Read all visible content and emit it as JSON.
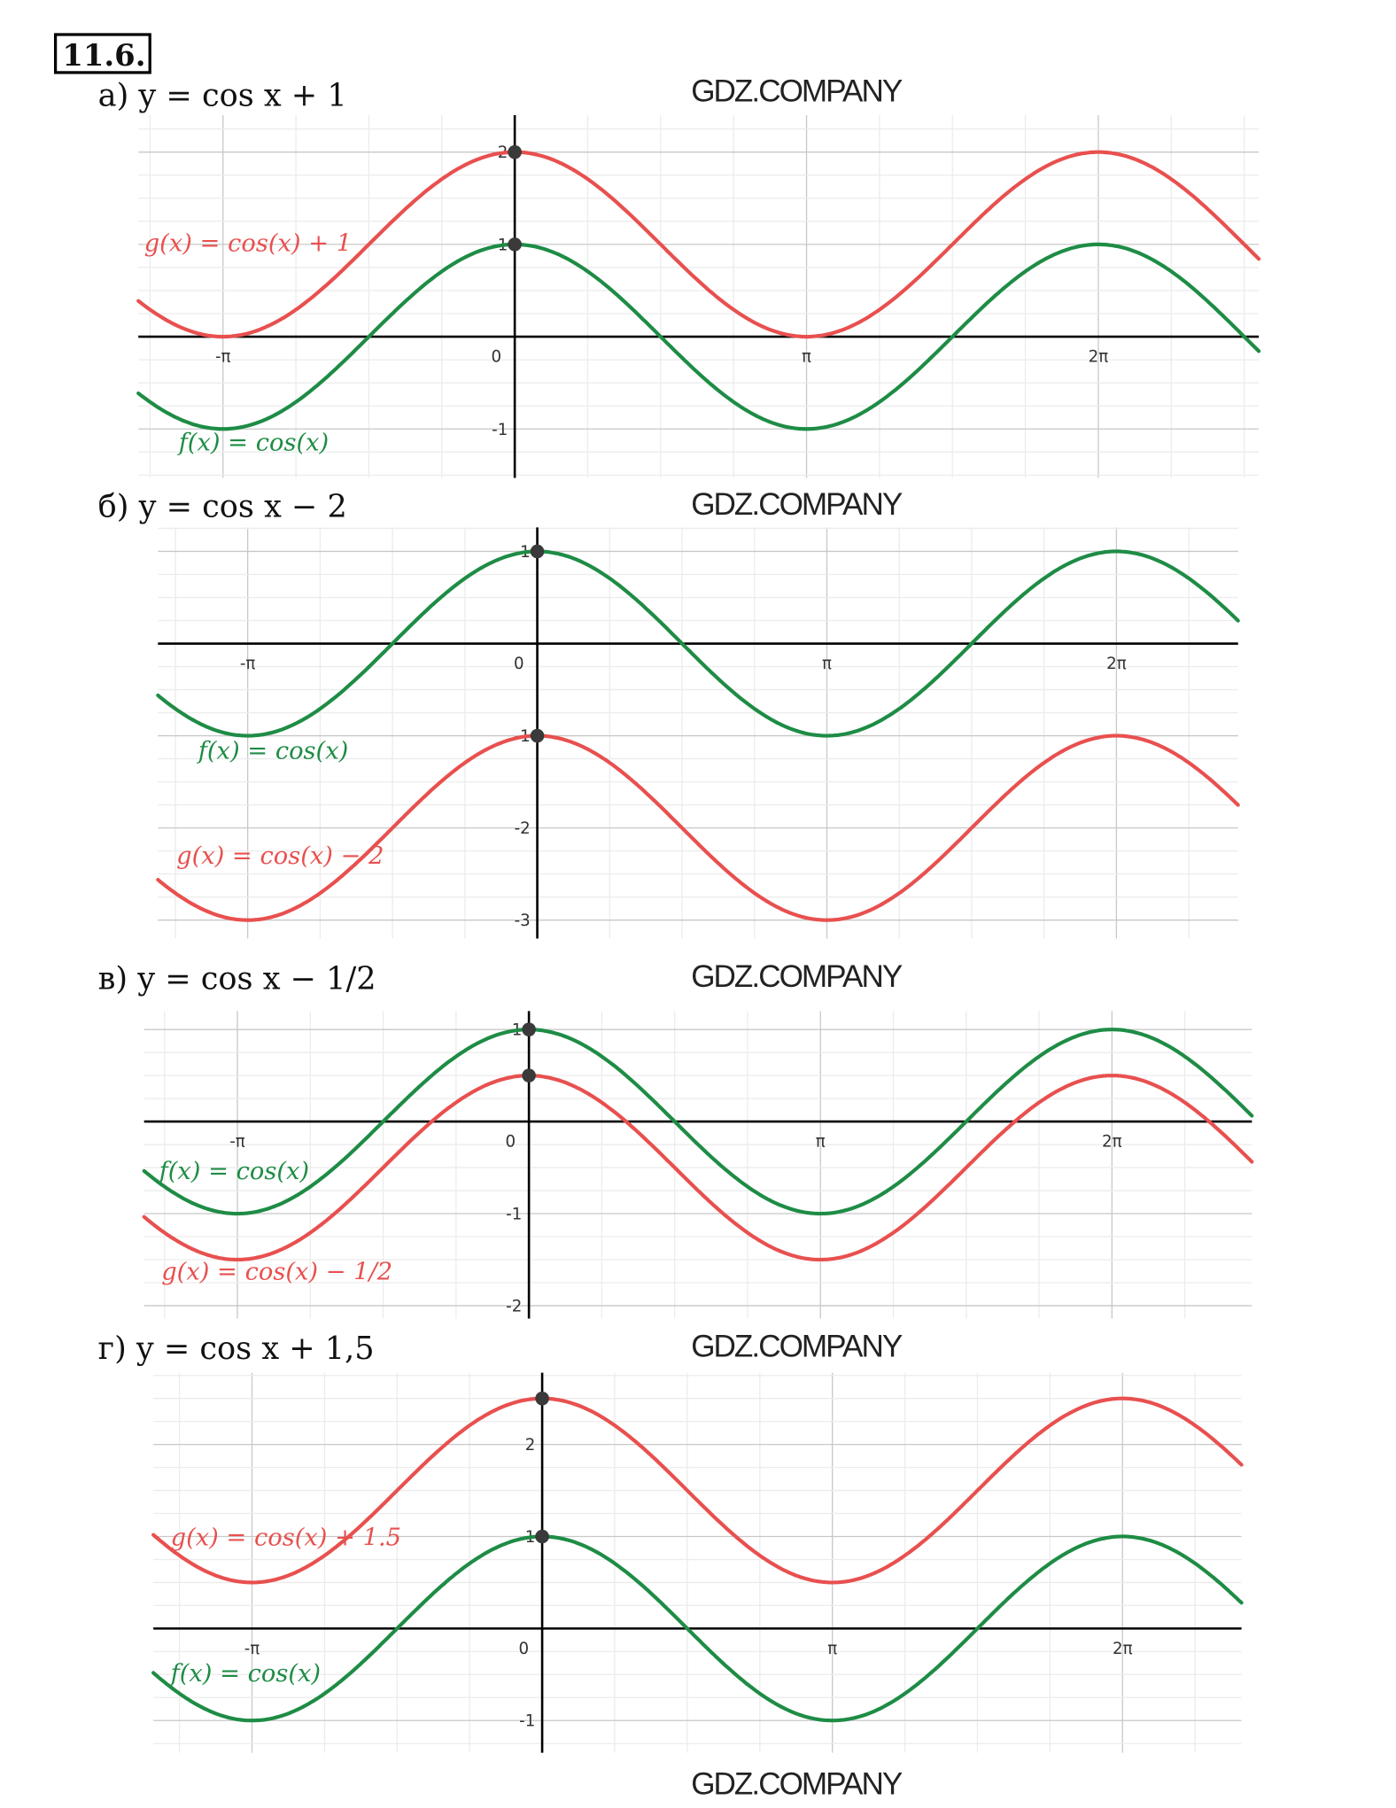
{
  "exercise_number": "11.6.",
  "colors": {
    "f": "#1e8c45",
    "g": "#e8504f",
    "axis": "#000000",
    "grid_major": "#c8c8c8",
    "grid_minor": "#ececec",
    "point": "#3a3a3a"
  },
  "watermark": "GDZ.COMPANY",
  "chart_data": [
    {
      "type": "line",
      "label": "а)",
      "title": "y = cos x + 1",
      "x_unit": "pi",
      "xlim": [
        -1.29,
        2.55
      ],
      "ylim": [
        -1.53,
        2.4
      ],
      "grid": true,
      "x_ticks": [
        {
          "value": -1,
          "label": "-π"
        },
        {
          "value": 0,
          "label": "0"
        },
        {
          "value": 1,
          "label": "π"
        },
        {
          "value": 2,
          "label": "2π"
        }
      ],
      "y_ticks": [
        {
          "value": 2,
          "label": "2"
        },
        {
          "value": 1,
          "label": "1"
        },
        {
          "value": -1,
          "label": "-1"
        }
      ],
      "series": [
        {
          "name": "f",
          "legend": "f(x) = cos(x)",
          "shift": 0,
          "color": "#1e8c45"
        },
        {
          "name": "g",
          "legend": "g(x) = cos(x) + 1",
          "shift": 1,
          "color": "#e8504f"
        }
      ],
      "points": [
        [
          0,
          2
        ],
        [
          0,
          1
        ]
      ]
    },
    {
      "type": "line",
      "label": "б)",
      "title": "y = cos x − 2",
      "x_unit": "pi",
      "xlim": [
        -1.31,
        2.42
      ],
      "ylim": [
        -3.2,
        1.26
      ],
      "grid": true,
      "x_ticks": [
        {
          "value": -1,
          "label": "-π"
        },
        {
          "value": 0,
          "label": "0"
        },
        {
          "value": 1,
          "label": "π"
        },
        {
          "value": 2,
          "label": "2π"
        }
      ],
      "y_ticks": [
        {
          "value": 1,
          "label": "1"
        },
        {
          "value": -1,
          "label": "-1"
        },
        {
          "value": -2,
          "label": "-2"
        },
        {
          "value": -3,
          "label": "-3"
        }
      ],
      "series": [
        {
          "name": "f",
          "legend": "f(x) = cos(x)",
          "shift": 0,
          "color": "#1e8c45"
        },
        {
          "name": "g",
          "legend": "g(x) = cos(x) − 2",
          "shift": -2,
          "color": "#e8504f"
        }
      ],
      "points": [
        [
          0,
          1
        ],
        [
          0,
          -1
        ]
      ]
    },
    {
      "type": "line",
      "label": "в)",
      "title": "y = cos x − 1/2",
      "x_unit": "pi",
      "xlim": [
        -1.32,
        2.48
      ],
      "ylim": [
        -2.14,
        1.2
      ],
      "grid": true,
      "x_ticks": [
        {
          "value": -1,
          "label": "-π"
        },
        {
          "value": 0,
          "label": "0"
        },
        {
          "value": 1,
          "label": "π"
        },
        {
          "value": 2,
          "label": "2π"
        }
      ],
      "y_ticks": [
        {
          "value": 1,
          "label": "1"
        },
        {
          "value": -1,
          "label": "-1"
        },
        {
          "value": -2,
          "label": "-2"
        }
      ],
      "series": [
        {
          "name": "f",
          "legend": "f(x) = cos(x)",
          "shift": 0,
          "color": "#1e8c45"
        },
        {
          "name": "g",
          "legend": "g(x) = cos(x) − 1/2",
          "shift": -0.5,
          "color": "#e8504f"
        }
      ],
      "points": [
        [
          0,
          1
        ],
        [
          0,
          0.5
        ]
      ]
    },
    {
      "type": "line",
      "label": "г)",
      "title": "y = cos x + 1,5",
      "x_unit": "pi",
      "xlim": [
        -1.34,
        2.41
      ],
      "ylim": [
        -1.35,
        2.78
      ],
      "grid": true,
      "x_ticks": [
        {
          "value": -1,
          "label": "-π"
        },
        {
          "value": 0,
          "label": "0"
        },
        {
          "value": 1,
          "label": "π"
        },
        {
          "value": 2,
          "label": "2π"
        }
      ],
      "y_ticks": [
        {
          "value": 2,
          "label": "2"
        },
        {
          "value": 1,
          "label": "1"
        },
        {
          "value": -1,
          "label": "-1"
        }
      ],
      "series": [
        {
          "name": "f",
          "legend": "f(x) = cos(x)",
          "shift": 0,
          "color": "#1e8c45"
        },
        {
          "name": "g",
          "legend": "g(x) = cos(x) + 1.5",
          "shift": 1.5,
          "color": "#e8504f"
        }
      ],
      "points": [
        [
          0,
          2.5
        ],
        [
          0,
          1
        ]
      ]
    }
  ]
}
